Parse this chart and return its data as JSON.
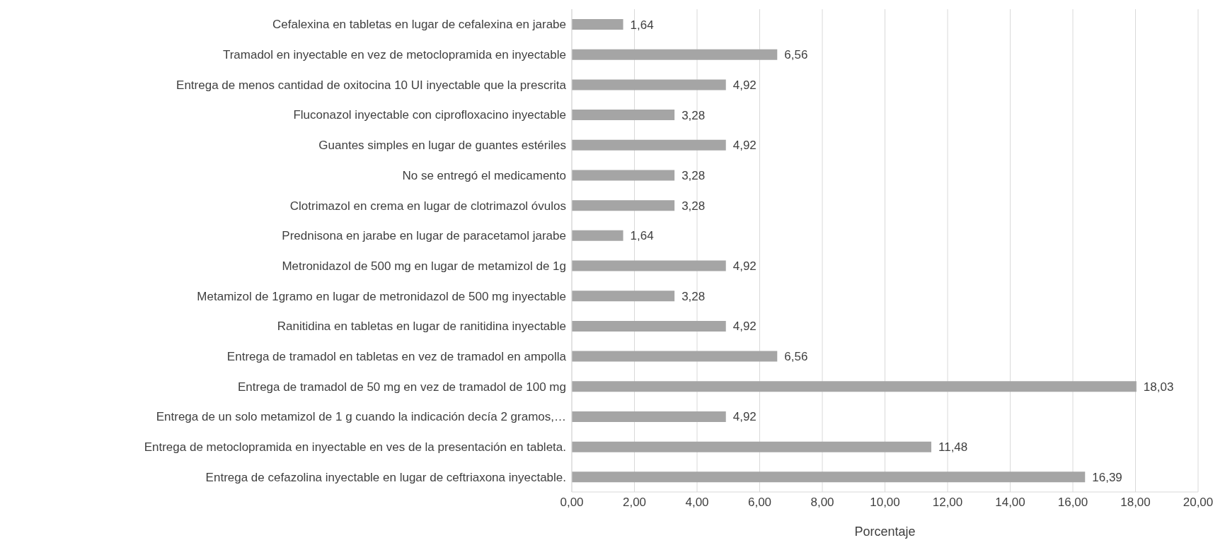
{
  "chart_data": {
    "type": "bar",
    "orientation": "horizontal",
    "xlabel": "Porcentaje",
    "categories": [
      "Cefalexina en tabletas en lugar de cefalexina en jarabe",
      "Tramadol en inyectable en vez de metoclopramida en inyectable",
      "Entrega de menos cantidad de oxitocina 10 UI inyectable que la prescrita",
      "Fluconazol inyectable con ciprofloxacino inyectable",
      "Guantes simples en lugar de guantes estériles",
      "No se entregó el medicamento",
      "Clotrimazol en crema en lugar de clotrimazol óvulos",
      "Prednisona en jarabe en lugar de paracetamol jarabe",
      "Metronidazol de 500 mg en lugar de metamizol de 1g",
      "Metamizol de 1gramo en lugar de metronidazol de 500 mg inyectable",
      "Ranitidina en tabletas en lugar de ranitidina inyectable",
      "Entrega de tramadol en tabletas en vez de tramadol en ampolla",
      "Entrega de tramadol de 50 mg en vez de tramadol de 100 mg",
      "Entrega de un solo metamizol de 1 g cuando la indicación decía 2 gramos,…",
      "Entrega de metoclopramida en inyectable en ves de la presentación en tableta.",
      "Entrega de cefazolina inyectable en lugar de ceftriaxona inyectable."
    ],
    "values": [
      1.64,
      6.56,
      4.92,
      3.28,
      4.92,
      3.28,
      3.28,
      1.64,
      4.92,
      3.28,
      4.92,
      6.56,
      18.03,
      4.92,
      11.48,
      16.39
    ],
    "value_labels": [
      "1,64",
      "6,56",
      "4,92",
      "3,28",
      "4,92",
      "3,28",
      "3,28",
      "1,64",
      "4,92",
      "3,28",
      "4,92",
      "6,56",
      "18,03",
      "4,92",
      "11,48",
      "16,39"
    ],
    "color": "#a5a5a5",
    "xlim": [
      0,
      20
    ],
    "xticks": [
      {
        "value": 0,
        "label": "0,00"
      },
      {
        "value": 2,
        "label": "2,00"
      },
      {
        "value": 4,
        "label": "4,00"
      },
      {
        "value": 6,
        "label": "6,00"
      },
      {
        "value": 8,
        "label": "8,00"
      },
      {
        "value": 10,
        "label": "10,00"
      },
      {
        "value": 12,
        "label": "12,00"
      },
      {
        "value": 14,
        "label": "14,00"
      },
      {
        "value": 16,
        "label": "16,00"
      },
      {
        "value": 18,
        "label": "18,00"
      },
      {
        "value": 20,
        "label": "20,00"
      }
    ],
    "grid": "x"
  }
}
